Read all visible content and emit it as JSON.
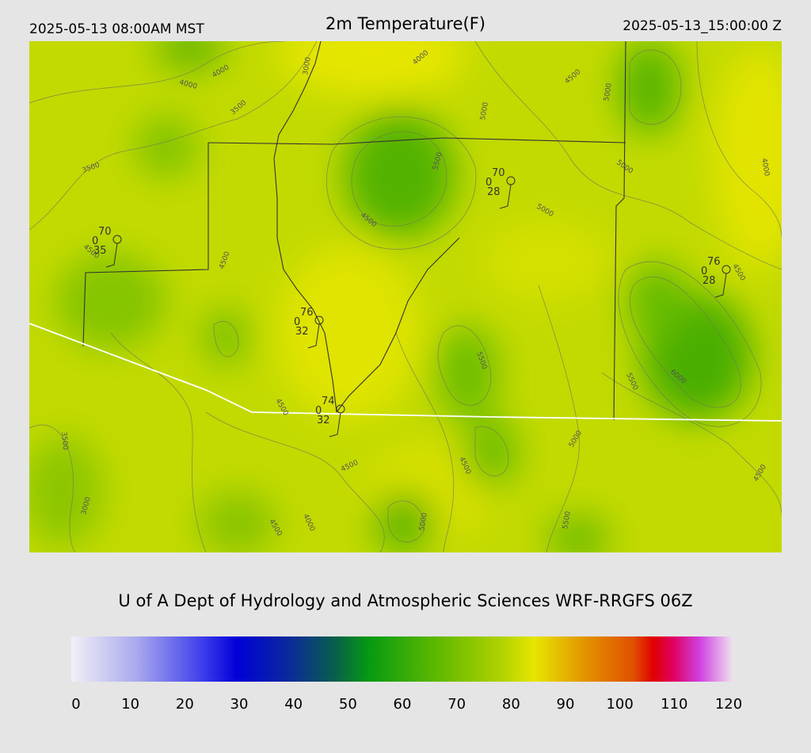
{
  "header": {
    "left": "2025-05-13 08:00AM MST",
    "title": "2m Temperature(F)",
    "right": "2025-05-13_15:00:00 Z"
  },
  "contour_labels": [
    "4000",
    "4000",
    "3000",
    "3500",
    "4000",
    "4500",
    "5000",
    "5000",
    "5500",
    "5000",
    "4000",
    "3500",
    "4500",
    "5000",
    "4500",
    "4500",
    "4500",
    "5500",
    "6000",
    "5500",
    "4500",
    "3500",
    "5000",
    "4500",
    "4500",
    "4500",
    "3000",
    "4000",
    "4500",
    "5000",
    "5500"
  ],
  "stations": [
    {
      "temperature": 70,
      "wind": 0,
      "dewpoint": 35
    },
    {
      "temperature": 70,
      "wind": 0,
      "dewpoint": 28
    },
    {
      "temperature": 76,
      "wind": 0,
      "dewpoint": 28
    },
    {
      "temperature": 76,
      "wind": 0,
      "dewpoint": 32
    },
    {
      "temperature": 74,
      "wind": 0,
      "dewpoint": 32
    }
  ],
  "footer": "U of A Dept of Hydrology and Atmospheric Sciences WRF-RRGFS 06Z",
  "colorbar": {
    "range": [
      0,
      120
    ],
    "ticks": [
      0,
      10,
      20,
      30,
      40,
      50,
      60,
      70,
      80,
      90,
      100,
      110,
      120
    ]
  }
}
